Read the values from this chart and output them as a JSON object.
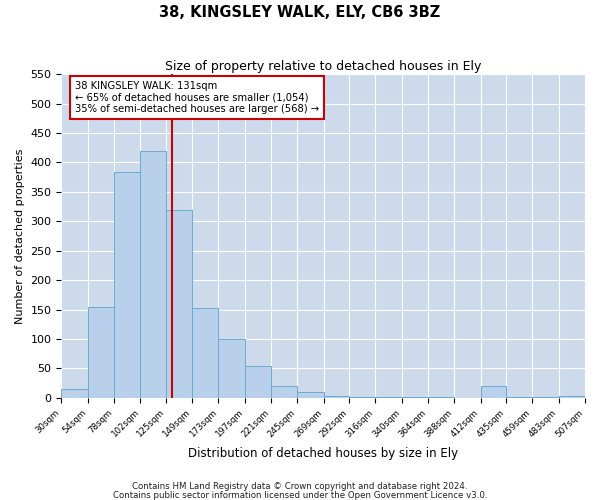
{
  "title": "38, KINGSLEY WALK, ELY, CB6 3BZ",
  "subtitle": "Size of property relative to detached houses in Ely",
  "xlabel": "Distribution of detached houses by size in Ely",
  "ylabel": "Number of detached properties",
  "bin_edges": [
    30,
    54,
    78,
    102,
    125,
    149,
    173,
    197,
    221,
    245,
    269,
    292,
    316,
    340,
    364,
    388,
    412,
    435,
    459,
    483,
    507
  ],
  "bin_heights": [
    15,
    155,
    383,
    420,
    320,
    152,
    100,
    55,
    20,
    10,
    3,
    2,
    1,
    1,
    1,
    0,
    20,
    1,
    1,
    3
  ],
  "bar_color": "#b8d0ea",
  "bar_edge_color": "#6aaad4",
  "property_size": 131,
  "vline_color": "#cc0000",
  "annotation_text": "38 KINGSLEY WALK: 131sqm\n← 65% of detached houses are smaller (1,054)\n35% of semi-detached houses are larger (568) →",
  "annotation_box_color": "#ffffff",
  "annotation_box_edge": "#cc0000",
  "ylim": [
    0,
    550
  ],
  "xlim": [
    30,
    507
  ],
  "tick_labels": [
    "30sqm",
    "54sqm",
    "78sqm",
    "102sqm",
    "125sqm",
    "149sqm",
    "173sqm",
    "197sqm",
    "221sqm",
    "245sqm",
    "269sqm",
    "292sqm",
    "316sqm",
    "340sqm",
    "364sqm",
    "388sqm",
    "412sqm",
    "435sqm",
    "459sqm",
    "483sqm",
    "507sqm"
  ],
  "footer1": "Contains HM Land Registry data © Crown copyright and database right 2024.",
  "footer2": "Contains public sector information licensed under the Open Government Licence v3.0.",
  "background_color": "#ffffff",
  "grid_color": "#ccdaeb"
}
